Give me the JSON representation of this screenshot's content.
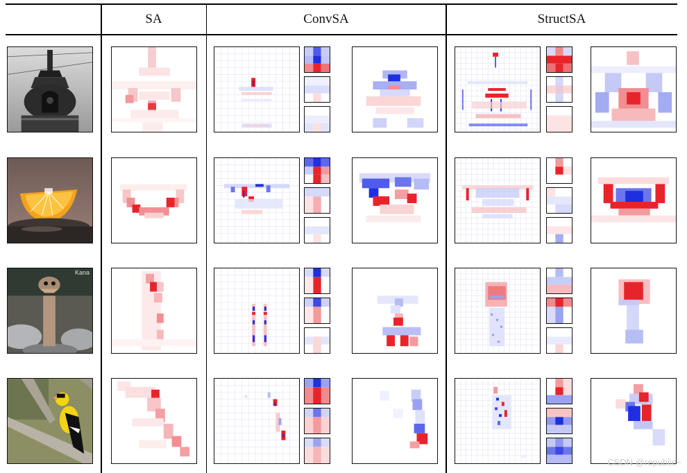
{
  "headers": {
    "sa": "SA",
    "convsa": "ConvSA",
    "structsa": "StructSA"
  },
  "rows": [
    {
      "id": "stupa",
      "photo_watermark": ""
    },
    {
      "id": "orange",
      "photo_watermark": ""
    },
    {
      "id": "ostrich",
      "photo_watermark": "Kana"
    },
    {
      "id": "goldfinch",
      "photo_watermark": ""
    }
  ],
  "watermark": "CSDN @republic~",
  "colors": {
    "positive": "#e8242b",
    "negative": "#1f2fe0",
    "line": "#000000"
  }
}
